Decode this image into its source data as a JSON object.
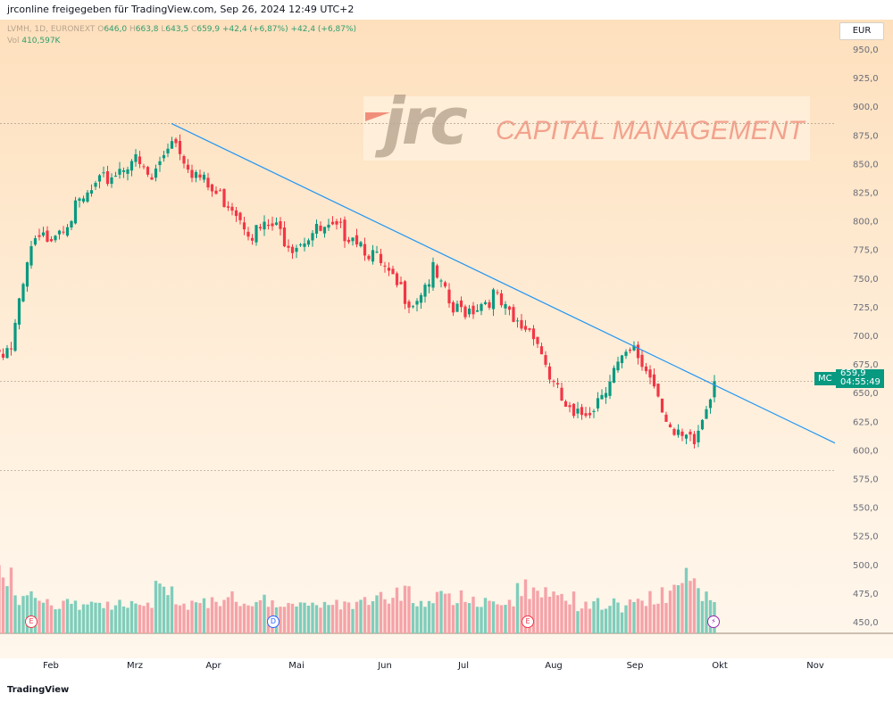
{
  "header": {
    "shared_by": "jrconline freigegeben für TradingView.com, Sep 26, 2024 12:49 UTC+2"
  },
  "legend": {
    "symbol": "LVMH, 1D, EURONEXT",
    "o_label": "O",
    "open": "646,0",
    "h_label": "H",
    "high": "663,8",
    "l_label": "L",
    "low": "643,5",
    "c_label": "C",
    "close": "659,9",
    "change1": "+42,4 (+6,87%)",
    "change2": "+42,4 (+6,87%)",
    "vol_label": "Vol",
    "volume": "410,597K"
  },
  "currency": "EUR",
  "last_price": {
    "ticker": "MC",
    "price": "659,9",
    "countdown": "04:55:49"
  },
  "watermark": {
    "logo": "jrc",
    "text": "CAPITAL MANAGEMENT"
  },
  "events": [
    {
      "label": "E",
      "type": "earnings"
    },
    {
      "label": "D",
      "type": "dividend"
    },
    {
      "label": "E",
      "type": "earnings"
    },
    {
      "label": "⚡",
      "type": "split"
    }
  ],
  "footer": {
    "brand": "TradingView"
  },
  "colors": {
    "up": "#089981",
    "down": "#f23645",
    "up_vol": "#7fcdbb",
    "down_vol": "#f5a3a8",
    "trend": "#2196f3"
  },
  "chart_data": {
    "type": "candlestick",
    "ylim": [
      450,
      960
    ],
    "y_ticks": [
      "450,0",
      "475,0",
      "500,0",
      "525,0",
      "550,0",
      "575,0",
      "600,0",
      "625,0",
      "650,0",
      "675,0",
      "700,0",
      "725,0",
      "750,0",
      "775,0",
      "800,0",
      "825,0",
      "850,0",
      "875,0",
      "900,0",
      "925,0",
      "950,0"
    ],
    "x_ticks": [
      "Feb",
      "Mrz",
      "Apr",
      "Mai",
      "Jun",
      "Jul",
      "Aug",
      "Sep",
      "Okt",
      "Nov"
    ],
    "weekly_closes": [
      640,
      665,
      685,
      690,
      775,
      790,
      805,
      825,
      840,
      855,
      835,
      875,
      845,
      825,
      815,
      790,
      795,
      780,
      790,
      790,
      790,
      770,
      745,
      730,
      755,
      720,
      725,
      735,
      710,
      705,
      655,
      625,
      640,
      670,
      685,
      660,
      610,
      605,
      660
    ],
    "weekly_rel_volume": [
      0.35,
      0.3,
      0.32,
      0.6,
      0.35,
      0.3,
      0.28,
      0.3,
      0.3,
      0.32,
      0.33,
      0.45,
      0.3,
      0.3,
      0.35,
      0.3,
      0.33,
      0.3,
      0.3,
      0.28,
      0.3,
      0.32,
      0.38,
      0.4,
      0.35,
      0.38,
      0.35,
      0.3,
      0.35,
      0.45,
      0.4,
      0.35,
      0.3,
      0.3,
      0.28,
      0.35,
      0.4,
      0.55,
      0.4
    ],
    "trendline": {
      "from": 885,
      "to": 606
    },
    "levels": [
      885,
      659.9,
      582
    ]
  }
}
